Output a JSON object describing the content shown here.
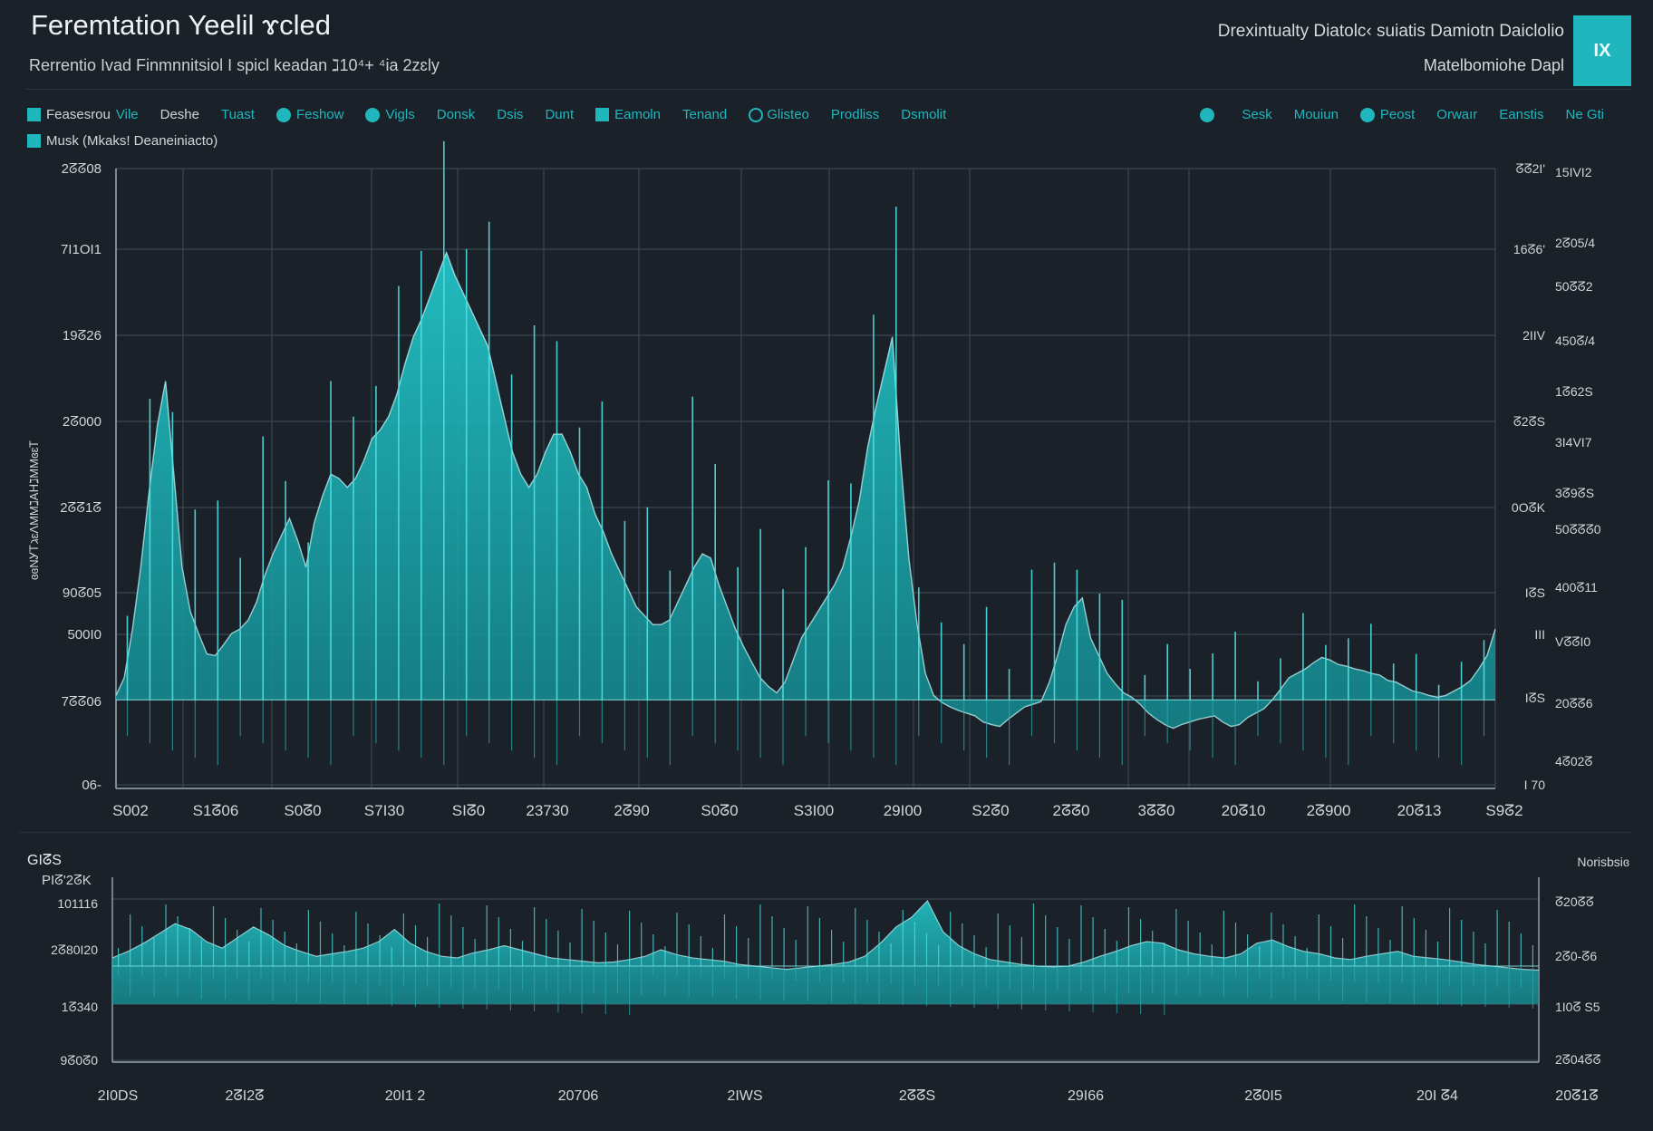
{
  "header": {
    "title": "Feremtation Yeelil ɤcled",
    "subtitle": "Rerrentio Ivad Finmnnitsiol I spicl keadan ℷ10⁴+ ⁴ia 2zɛly",
    "right_title": "Drexintualty Diatolc‹ suiatis  Damiotn Daiclolio",
    "right_subtitle": "Matelbomiohe Dapl",
    "export_label": "IX"
  },
  "legend": {
    "main": [
      {
        "marker": "square",
        "label": "Feasesrou",
        "label2": "Vile"
      },
      {
        "marker": "none",
        "label": "Deshe",
        "light": true
      },
      {
        "marker": "none",
        "label": "Tuast"
      },
      {
        "marker": "dot",
        "label": "Feshow"
      },
      {
        "marker": "dot",
        "label": "Vigls"
      },
      {
        "marker": "none",
        "label": "Donsk"
      },
      {
        "marker": "none",
        "label": "Dsis"
      },
      {
        "marker": "none",
        "label": "Dunt"
      },
      {
        "marker": "square",
        "label": "Eamoln"
      },
      {
        "marker": "none",
        "label": "Tenand"
      },
      {
        "marker": "ring",
        "label": "Glisteo"
      },
      {
        "marker": "none",
        "label": "Prodliss"
      },
      {
        "marker": "none",
        "label": "Dsmolit"
      }
    ],
    "right": [
      {
        "marker": "dot",
        "label": ""
      },
      {
        "marker": "none",
        "label": "Sesk"
      },
      {
        "marker": "none",
        "label": "Mouiun"
      },
      {
        "marker": "dot",
        "label": "Peost"
      },
      {
        "marker": "none",
        "label": "Orwaır"
      },
      {
        "marker": "none",
        "label": "Eanstis"
      },
      {
        "marker": "none",
        "label": "Ne Gti"
      }
    ],
    "second": {
      "marker": "square",
      "label": "Musk (Mkaks! Deaneiniacto)"
    }
  },
  "colors": {
    "background": "#1b2129",
    "accent": "#1fb7bd",
    "fill": "#1aa8ad",
    "grid": "#3a4651"
  },
  "chart_data": [
    {
      "type": "area",
      "y_axis_title": "ɞɞNᎩᎢℷɛΛMMℷAᕼℷMMɞɛᎢ",
      "y_left_ticks": [
        "2ᘔᘔ08",
        "7I1OI1",
        "19ᘔ26",
        "2ᘔ000",
        "2ᘔᘔ1ᘔ",
        "90ᘔ05",
        "500I0",
        "7ᘔᘔ06",
        "06-"
      ],
      "y_right_ticks_a": [
        "ᘔᘔ2I'",
        "16ᘔ6'",
        "2IIV",
        "ᘔ2ᘔS",
        "0OᘔK",
        "IᘔS",
        "III",
        "IᘔS",
        "I  70"
      ],
      "y_right_ticks_b": [
        "15IVI2",
        "2ᘔ05/4",
        "50ᘔᘔ2",
        "450ᘔ/4",
        "1ᘔ62S",
        "3I4VI7",
        "3ᘔ9ᘔS",
        "50ᘔᘔᘔ0",
        "400ᘔ11",
        "VᘔᘔI0",
        "20ᘔᘔ6",
        "4ᘔ02ᘔ"
      ],
      "x_ticks": [
        "S002",
        "S1ᘔ06",
        "S0ᘔ0",
        "S7I30",
        "SIᘔ0",
        "23730",
        "2ᘔ90",
        "S0ᘔ0",
        "S3I00",
        "29I00",
        "S2ᘔ0",
        "2ᘔᘔ0",
        "3ᘔᘔ0",
        "20ᘔ10",
        "2ᘔ900",
        "20ᘔ13",
        "S9ᘔ2"
      ],
      "x_range": [
        0,
        100
      ],
      "y_range": [
        -100,
        600
      ],
      "baseline": 0,
      "grid": true,
      "series": [
        {
          "values": [
            5,
            25,
            80,
            150,
            235,
            310,
            360,
            255,
            150,
            100,
            75,
            52,
            50,
            62,
            75,
            80,
            90,
            110,
            140,
            165,
            185,
            205,
            180,
            150,
            200,
            230,
            255,
            250,
            240,
            250,
            270,
            295,
            305,
            320,
            345,
            380,
            410,
            430,
            455,
            480,
            505,
            480,
            460,
            440,
            420,
            400,
            360,
            320,
            280,
            255,
            240,
            255,
            280,
            300,
            300,
            280,
            255,
            240,
            210,
            190,
            165,
            145,
            125,
            105,
            95,
            85,
            85,
            90,
            110,
            130,
            150,
            165,
            160,
            130,
            105,
            80,
            60,
            42,
            25,
            15,
            8,
            20,
            45,
            70,
            85,
            100,
            115,
            130,
            150,
            185,
            225,
            285,
            330,
            370,
            410,
            270,
            160,
            85,
            30,
            5,
            -3,
            -8,
            -12,
            -15,
            -18,
            -25,
            -28,
            -30,
            -22,
            -15,
            -8,
            -5,
            -2,
            20,
            50,
            85,
            105,
            115,
            70,
            50,
            30,
            18,
            8,
            3,
            -5,
            -15,
            -22,
            -28,
            -32,
            -28,
            -25,
            -22,
            -20,
            -18,
            -25,
            -30,
            -28,
            -20,
            -15,
            -10,
            0,
            12,
            25,
            30,
            35,
            42,
            48,
            45,
            40,
            38,
            35,
            33,
            30,
            28,
            22,
            20,
            15,
            10,
            8,
            5,
            3,
            5,
            10,
            15,
            22,
            35,
            50,
            80
          ]
        },
        {
          "values": [
            200,
            300,
            200,
            400,
            500,
            230,
            450,
            120,
            80,
            300,
            200,
            170,
            350,
            220,
            360,
            140,
            400,
            250,
            480,
            300,
            150,
            420,
            220,
            350,
            160,
            550,
            390,
            200,
            480,
            300,
            250,
            380,
            170,
            300,
            420,
            120,
            250,
            180,
            300,
            100,
            420,
            300,
            120,
            200,
            300,
            80,
            180,
            100,
            150,
            220,
            60,
            100,
            180,
            40,
            90,
            160,
            60,
            120,
            40,
            80,
            50
          ]
        }
      ]
    },
    {
      "type": "area",
      "y_axis_title": "GIᘔS",
      "y_axis_subtitle": "PIᘔ'2ᘔK",
      "right_axis_title": "Norisbsiɞ",
      "y_left_ticks": [
        "101116",
        "2ᘔ80I20",
        "1ᘔ340",
        "9ᘔ0ᘔ0"
      ],
      "y_right_ticks": [
        "ᘔ20ᘔᘔ",
        "2ᘔ0-ᘔ6",
        "1I0ᘔ S5",
        "2ᘔ04ᘔᘔ"
      ],
      "x_ticks": [
        "2I0DS",
        "2ᘔI2ᘔ",
        "20I1 2",
        "20706",
        "2IWS",
        "2ᘔᘔS",
        "29I66",
        "2ᘔ0I5",
        "20I ᘔ4",
        "20ᘔ1ᘔ"
      ],
      "grid": true,
      "series": [
        {
          "values": [
            10,
            18,
            28,
            40,
            52,
            45,
            30,
            22,
            35,
            48,
            38,
            25,
            18,
            12,
            15,
            18,
            22,
            30,
            45,
            28,
            18,
            12,
            10,
            16,
            20,
            25,
            20,
            15,
            10,
            8,
            6,
            4,
            5,
            8,
            12,
            20,
            14,
            10,
            8,
            6,
            2,
            0,
            -2,
            -4,
            -2,
            0,
            2,
            5,
            12,
            28,
            48,
            60,
            80,
            42,
            25,
            15,
            8,
            5,
            2,
            0,
            -1,
            0,
            5,
            12,
            18,
            25,
            30,
            28,
            20,
            15,
            12,
            10,
            15,
            28,
            32,
            24,
            18,
            15,
            10,
            8,
            12,
            15,
            18,
            12,
            10,
            8,
            5,
            2,
            0,
            -2,
            -4,
            -5
          ]
        }
      ]
    }
  ]
}
